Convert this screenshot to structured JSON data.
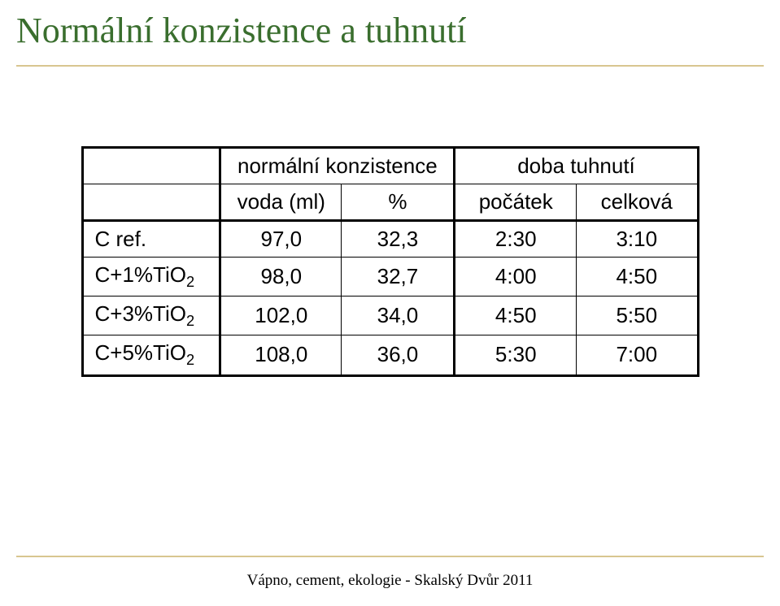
{
  "title": "Normální konzistence a tuhnutí",
  "title_color": "#3a6e2e",
  "accent_rule_color": "#d8c690",
  "table": {
    "header_group_left": "normální konzistence",
    "header_group_right": "doba tuhnutí",
    "subheaders": {
      "col1": "",
      "col2": "voda (ml)",
      "col3": "%",
      "col4": "počátek",
      "col5": "celková"
    },
    "rows": [
      {
        "label_html": "C ref.",
        "voda": "97,0",
        "pct": "32,3",
        "start": "2:30",
        "total": "3:10"
      },
      {
        "label_html": "C+1%TiO<sub>2</sub>",
        "voda": "98,0",
        "pct": "32,7",
        "start": "4:00",
        "total": "4:50"
      },
      {
        "label_html": "C+3%TiO<sub>2</sub>",
        "voda": "102,0",
        "pct": "34,0",
        "start": "4:50",
        "total": "5:50"
      },
      {
        "label_html": "C+5%TiO<sub>2</sub>",
        "voda": "108,0",
        "pct": "36,0",
        "start": "5:30",
        "total": "7:00"
      }
    ],
    "border_color": "#000000",
    "font_family": "Arial",
    "font_size_pt": 20,
    "text_color": "#000000",
    "background_color": "#ffffff"
  },
  "footer": "Vápno, cement, ekologie - Skalský Dvůr 2011"
}
